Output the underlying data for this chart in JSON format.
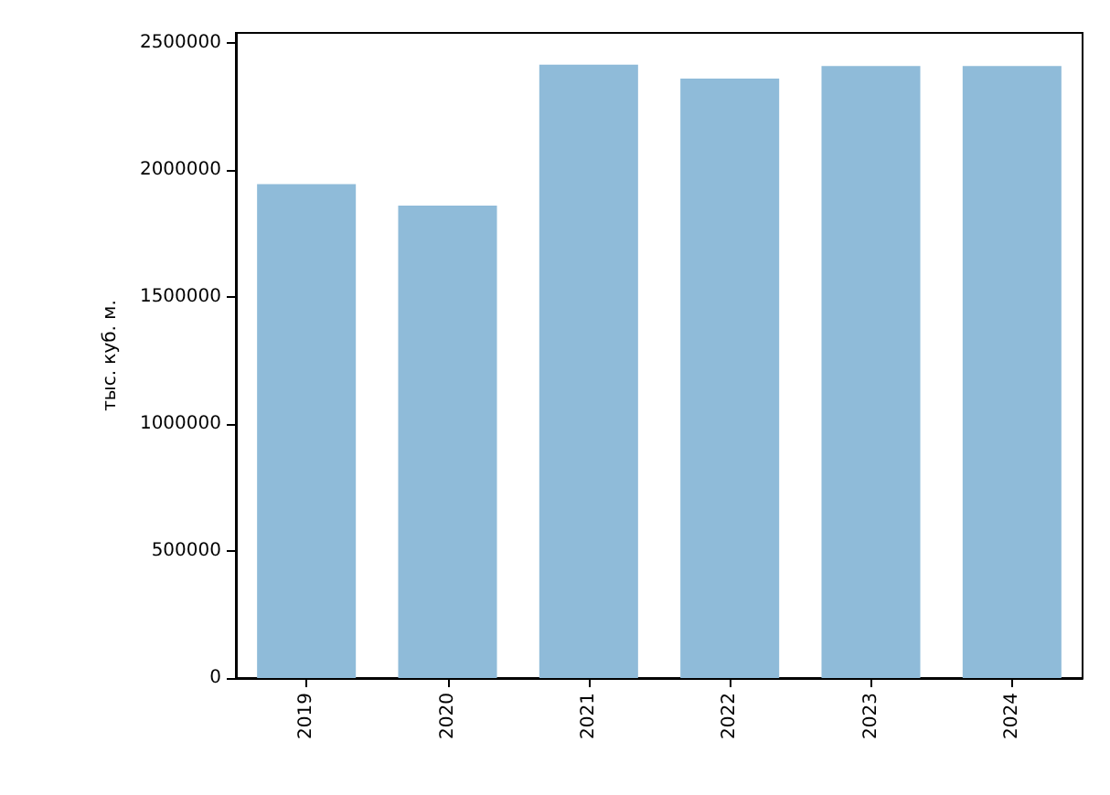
{
  "chart_data": {
    "type": "bar",
    "ylabel": "тыс. куб. м.",
    "categories": [
      "2019",
      "2020",
      "2021",
      "2022",
      "2023",
      "2024"
    ],
    "values": [
      1945000,
      1860000,
      2415000,
      2360000,
      2410000,
      2410000
    ],
    "color": "#8fbbd9",
    "ylim": [
      0,
      2540000
    ],
    "yticks": [
      0,
      500000,
      1000000,
      1500000,
      2000000,
      2500000
    ],
    "grid": false
  }
}
